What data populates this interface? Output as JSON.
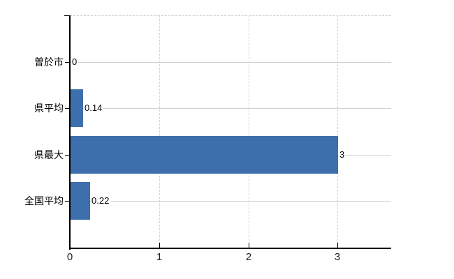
{
  "chart_data": {
    "type": "bar",
    "orientation": "horizontal",
    "title": "",
    "xlabel": "",
    "ylabel": "",
    "categories": [
      "曽於市",
      "県平均",
      "県最大",
      "全国平均"
    ],
    "values": [
      0,
      0.14,
      3,
      0.22
    ],
    "value_labels": [
      "0",
      "0.14",
      "3",
      "0.22"
    ],
    "x_tick_labels": [
      "0",
      "1",
      "2",
      "3"
    ],
    "x_ticks": [
      0,
      1,
      2,
      3
    ],
    "xlim": [
      0,
      3.6
    ],
    "grid": "on",
    "legend": "none",
    "colors": {
      "bar": "#3e6fad",
      "horizontal_gridline": "#cdd4c8",
      "vertical_gridline": "#d6d3d6",
      "top_border": "#c9cdc9",
      "axis": "#000000",
      "category_label": "#000000",
      "value_label": "#000000",
      "x_tick_label": "#222222",
      "background": "#ffffff"
    }
  }
}
